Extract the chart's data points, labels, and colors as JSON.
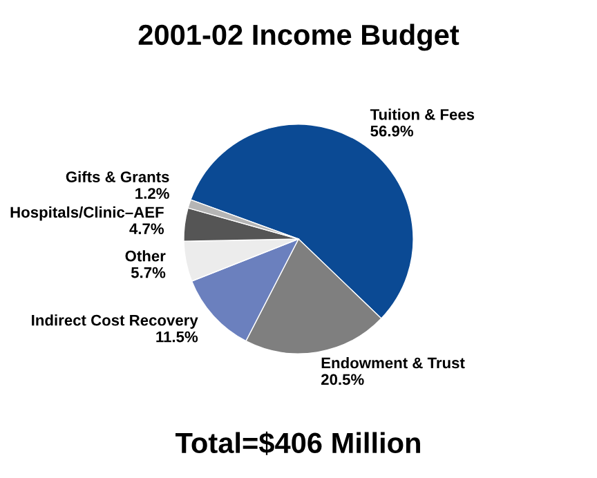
{
  "chart_data": {
    "type": "pie",
    "title": "2001-02 Income Budget",
    "categories": [
      "Tuition & Fees",
      "Endowment & Trust",
      "Indirect Cost Recovery",
      "Other",
      "Hospitals/Clinic–AEF",
      "Gifts & Grants"
    ],
    "values": [
      56.9,
      20.5,
      11.5,
      5.7,
      4.7,
      1.2
    ],
    "value_labels": [
      "56.9%",
      "20.5%",
      "11.5%",
      "5.7%",
      "4.7%",
      "1.2%"
    ],
    "colors": [
      "#0b4a94",
      "#7f7f7f",
      "#6b80be",
      "#ececec",
      "#555555",
      "#b5b5b5"
    ],
    "annotations": [
      "Total=$406 Million"
    ]
  }
}
